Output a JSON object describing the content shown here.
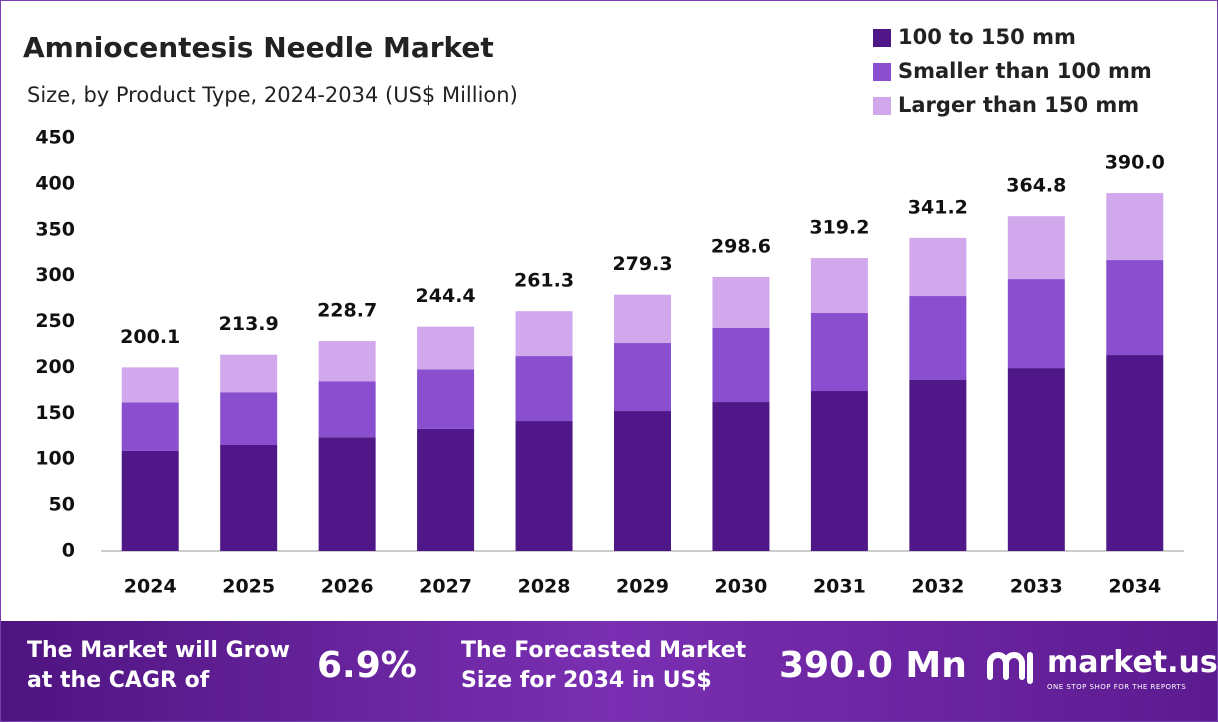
{
  "chart_data": {
    "type": "stacked_bar",
    "title": "Amniocentesis Needle Market",
    "subtitle": "Size, by Product Type, 2024-2034 (US$ Million)",
    "categories": [
      "2024",
      "2025",
      "2026",
      "2027",
      "2028",
      "2029",
      "2030",
      "2031",
      "2032",
      "2033",
      "2034"
    ],
    "series": [
      {
        "name": "100 to 150 mm",
        "color": "#4f1787",
        "values": [
          109,
          115.5,
          124,
          133,
          141.6,
          152.5,
          162.3,
          174.3,
          186.3,
          199.3,
          213.5
        ]
      },
      {
        "name": "Smaller than 100 mm",
        "color": "#8a4fcf",
        "values": [
          53,
          57.5,
          61,
          65,
          70.8,
          74.1,
          80.7,
          85,
          91.5,
          97,
          103.5
        ]
      },
      {
        "name": "Larger than 150 mm",
        "color": "#d2a8ec",
        "values": [
          38.1,
          40.9,
          43.7,
          46.4,
          48.9,
          52.7,
          55.6,
          59.9,
          63.4,
          68.5,
          73
        ]
      }
    ],
    "totals": [
      200.1,
      213.9,
      228.7,
      244.4,
      261.3,
      279.3,
      298.6,
      319.2,
      341.2,
      364.8,
      390
    ],
    "total_labels": [
      "200.1",
      "213.9",
      "228.7",
      "244.4",
      "261.3",
      "279.3",
      "298.6",
      "319.2",
      "341.2",
      "364.8",
      "390.0"
    ],
    "ylim": [
      0,
      450
    ],
    "yticks": [
      0,
      50,
      100,
      150,
      200,
      250,
      300,
      350,
      400,
      450
    ],
    "grid": false
  },
  "footer": {
    "cagr_label": [
      "The Market will Grow",
      "at the CAGR of"
    ],
    "cagr_value": "6.9%",
    "forecast_label": [
      "The Forecasted Market",
      "Size for 2034 in US$"
    ],
    "forecast_value": "390.0 Mn",
    "brand": "market.us",
    "tagline": "ONE STOP SHOP FOR THE REPORTS"
  }
}
